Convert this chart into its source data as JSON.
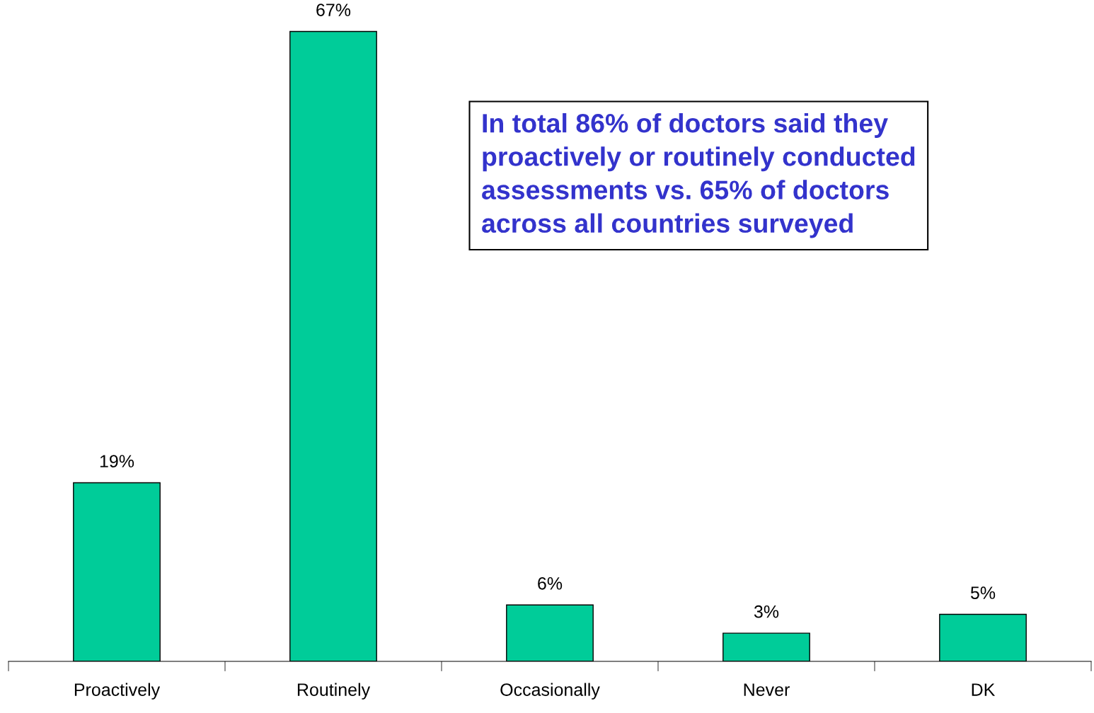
{
  "chart_data": {
    "type": "bar",
    "categories": [
      "Proactively",
      "Routinely",
      "Occasionally",
      "Never",
      "DK"
    ],
    "values": [
      19,
      67,
      6,
      3,
      5
    ],
    "color": "#00cc99",
    "data_labels": true,
    "grid": false,
    "legend": false,
    "tick_labels": "x",
    "value_labels": [
      "19%",
      "67%",
      "6%",
      "3%",
      "5%"
    ],
    "annotations": [
      "In total 86% of doctors said they\nproactively or routinely conducted\nassessments vs. 65% of doctors\nacross all countries surveyed"
    ]
  }
}
